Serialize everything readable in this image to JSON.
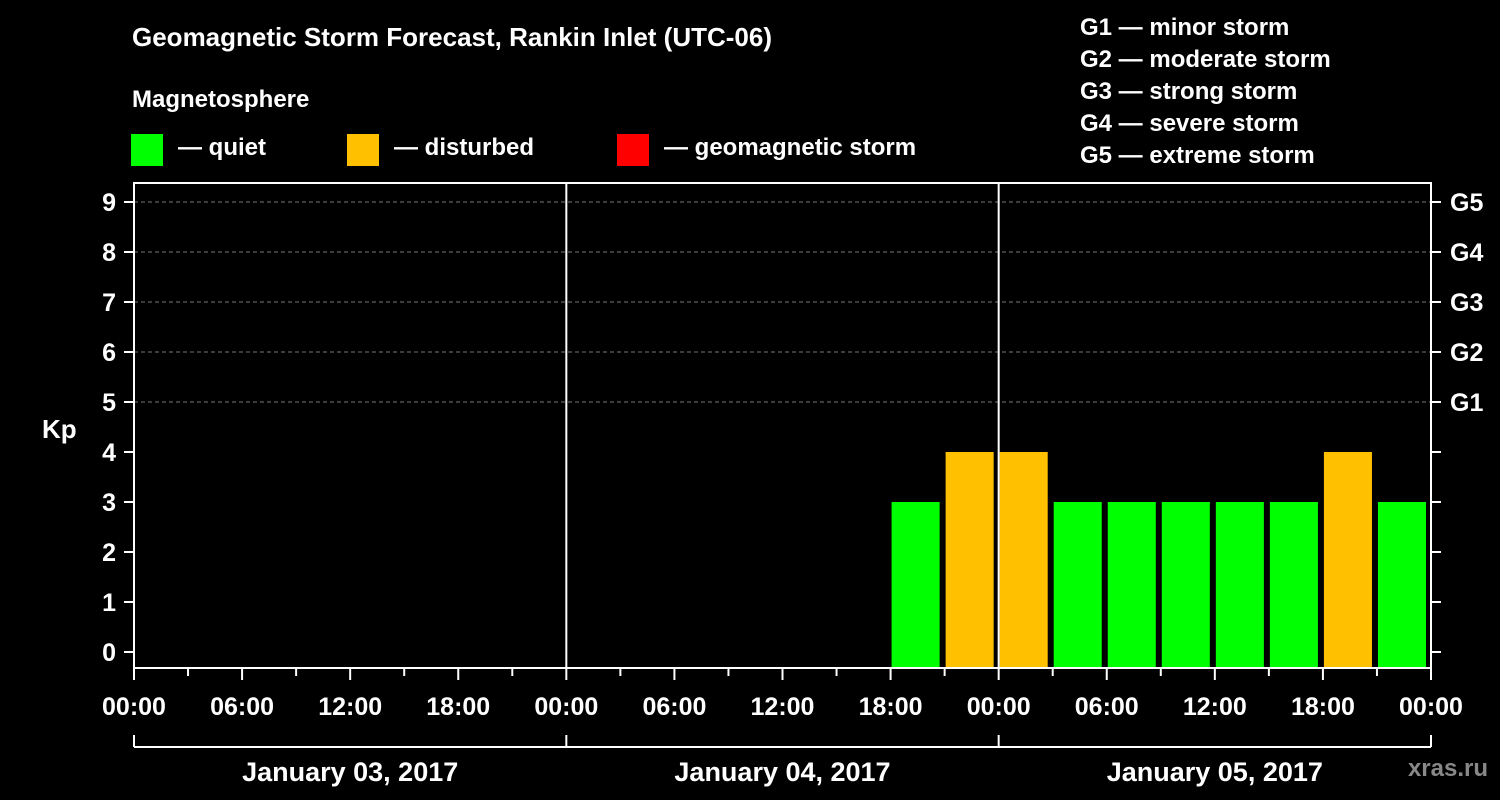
{
  "title": "Geomagnetic Storm Forecast, Rankin Inlet (UTC-06)",
  "legend": {
    "title": "Magnetosphere",
    "items": [
      {
        "label": "— quiet",
        "color": "#00ff00"
      },
      {
        "label": "— disturbed",
        "color": "#ffc000"
      },
      {
        "label": "— geomagnetic storm",
        "color": "#ff0000"
      }
    ]
  },
  "g_legend": [
    "G1 — minor storm",
    "G2 — moderate storm",
    "G3 — strong storm",
    "G4 — severe storm",
    "G5 — extreme storm"
  ],
  "watermark": "xras.ru",
  "chart_data": {
    "type": "bar",
    "title": "Geomagnetic Storm Forecast, Rankin Inlet (UTC-06)",
    "ylabel": "Kp",
    "ylim": [
      0,
      9
    ],
    "yticks": [
      "0",
      "1",
      "2",
      "3",
      "4",
      "5",
      "6",
      "7",
      "8",
      "9"
    ],
    "right_ticks": [
      {
        "kp": 5,
        "label": "G1"
      },
      {
        "kp": 6,
        "label": "G2"
      },
      {
        "kp": 7,
        "label": "G3"
      },
      {
        "kp": 8,
        "label": "G4"
      },
      {
        "kp": 9,
        "label": "G5"
      }
    ],
    "xtick_labels": [
      "00:00",
      "06:00",
      "12:00",
      "18:00",
      "00:00",
      "06:00",
      "12:00",
      "18:00",
      "00:00",
      "06:00",
      "12:00",
      "18:00",
      "00:00"
    ],
    "days": [
      "January 03, 2017",
      "January 04, 2017",
      "January 05, 2017"
    ],
    "interval_hours": 3,
    "bars": [
      {
        "day": 1,
        "start_hour": 18,
        "kp": 3,
        "status": "quiet"
      },
      {
        "day": 1,
        "start_hour": 21,
        "kp": 4,
        "status": "disturbed"
      },
      {
        "day": 2,
        "start_hour": 0,
        "kp": 4,
        "status": "disturbed"
      },
      {
        "day": 2,
        "start_hour": 3,
        "kp": 3,
        "status": "quiet"
      },
      {
        "day": 2,
        "start_hour": 6,
        "kp": 3,
        "status": "quiet"
      },
      {
        "day": 2,
        "start_hour": 9,
        "kp": 3,
        "status": "quiet"
      },
      {
        "day": 2,
        "start_hour": 12,
        "kp": 3,
        "status": "quiet"
      },
      {
        "day": 2,
        "start_hour": 15,
        "kp": 3,
        "status": "quiet"
      },
      {
        "day": 2,
        "start_hour": 18,
        "kp": 4,
        "status": "disturbed"
      },
      {
        "day": 2,
        "start_hour": 21,
        "kp": 3,
        "status": "quiet"
      }
    ],
    "colors": {
      "quiet": "#00ff00",
      "disturbed": "#ffc000",
      "storm": "#ff0000"
    },
    "grid": true
  }
}
